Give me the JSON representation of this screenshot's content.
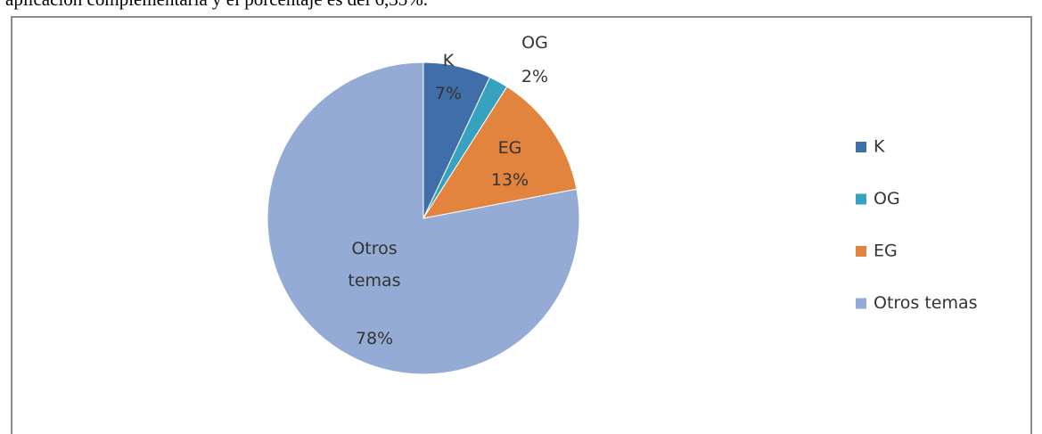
{
  "text_above": "aplicación complementaria y el porcentaje es del 6,35%.",
  "chart_data": {
    "type": "pie",
    "categories": [
      "K",
      "OG",
      "EG",
      "Otros temas"
    ],
    "values": [
      7,
      2,
      13,
      78
    ],
    "value_labels": [
      "7%",
      "2%",
      "13%",
      "78%"
    ],
    "colors": [
      "#3f6ea8",
      "#36a2bf",
      "#e2843d",
      "#94acd5"
    ],
    "legend": "right"
  }
}
